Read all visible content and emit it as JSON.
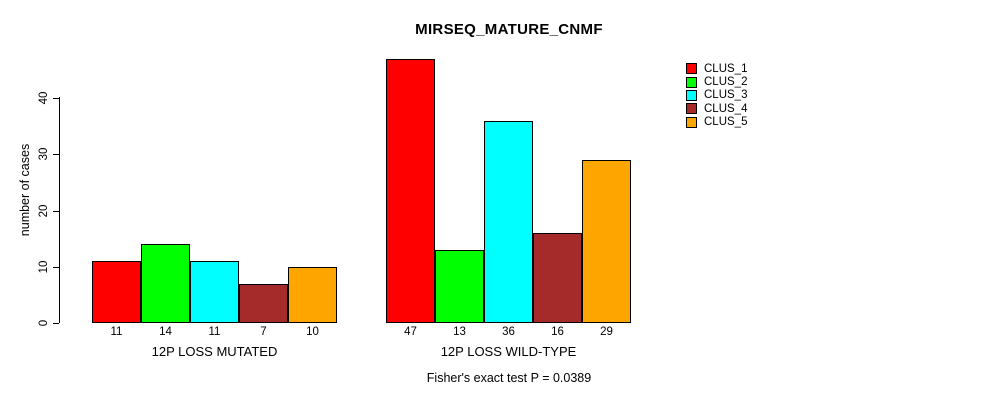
{
  "chart_data": {
    "type": "bar",
    "title": "MIRSEQ_MATURE_CNMF",
    "xlabel": "",
    "ylabel": "number of cases",
    "categories": [
      "12P LOSS MUTATED",
      "12P LOSS WILD-TYPE"
    ],
    "series": [
      {
        "name": "CLUS_1",
        "color": "#FF0000",
        "values": [
          11,
          47
        ]
      },
      {
        "name": "CLUS_2",
        "color": "#00FF00",
        "values": [
          14,
          13
        ]
      },
      {
        "name": "CLUS_3",
        "color": "#00FFFF",
        "values": [
          11,
          36
        ]
      },
      {
        "name": "CLUS_4",
        "color": "#A52A2A",
        "values": [
          7,
          16
        ]
      },
      {
        "name": "CLUS_5",
        "color": "#FFA500",
        "values": [
          10,
          29
        ]
      }
    ],
    "bar_value_labels": {
      "12P LOSS MUTATED": [
        11,
        14,
        11,
        7,
        10
      ],
      "12P LOSS WILD-TYPE": [
        47,
        13,
        36,
        16,
        29
      ]
    },
    "yticks": [
      0,
      10,
      20,
      30,
      40
    ],
    "ylim": [
      0,
      47
    ],
    "grid": false,
    "legend_position": "right",
    "annotation": "Fisher's exact test P = 0.0389"
  }
}
